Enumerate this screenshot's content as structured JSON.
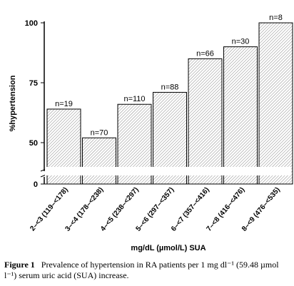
{
  "chart_data": {
    "type": "bar",
    "categories": [
      "2–<3 (119–<178)",
      "3–<4 (178–<238)",
      "4–<5 (238–<297)",
      "5–<6 (297–<357)",
      "6–<7 (357–<416)",
      "7–<8 (416–<476)",
      "8–<9 (476–<535)"
    ],
    "values": [
      64,
      52,
      66,
      71,
      85,
      90,
      100
    ],
    "bar_labels": [
      "n=19",
      "n=70",
      "n=110",
      "n=88",
      "n=66",
      "n=30",
      "n=8"
    ],
    "ylabel": "%hypertension",
    "xlabel": "mg/dL (µmol/L) SUA",
    "yticks": [
      "100",
      "75",
      "50",
      "0"
    ],
    "ylim": [
      40,
      100
    ],
    "axis_break": true,
    "bar_fill": "hatched"
  },
  "caption": {
    "label": "Figure 1",
    "text": "Prevalence of hypertension in RA patients per 1 mg dl⁻¹ (59.48 µmol l⁻¹) serum uric acid (SUA) increase."
  }
}
